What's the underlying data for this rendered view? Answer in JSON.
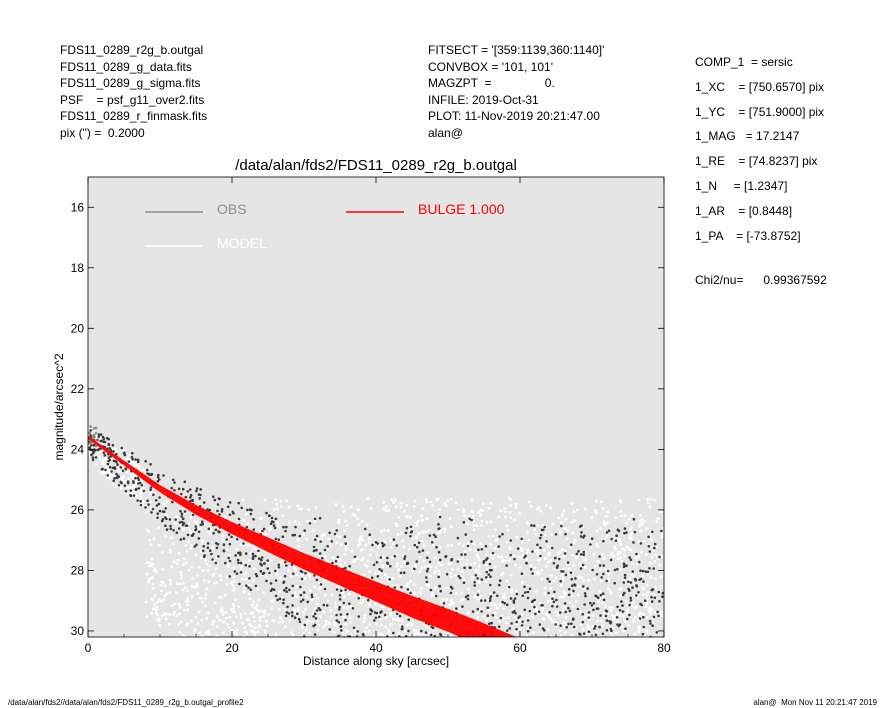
{
  "header_left": [
    "FDS11_0289_r2g_b.outgal",
    "FDS11_0289_g_data.fits",
    "FDS11_0289_g_sigma.fits",
    "PSF    = psf_g11_over2.fits",
    "FDS11_0289_r_finmask.fits",
    "pix (\") =  0.2000"
  ],
  "header_middle": [
    "FITSECT = '[359:1139,360:1140]'",
    "CONVBOX = '101, 101'",
    "MAGZPT  =                0.",
    "INFILE: 2019-Oct-31",
    "PLOT: 11-Nov-2019 20:21:47.00",
    "alan@"
  ],
  "header_right": [
    "COMP_1  = sersic",
    "1_XC    = [750.6570] pix",
    "1_YC    = [751.9000] pix",
    "1_MAG   = 17.2147",
    "1_RE    = [74.8237] pix",
    "1_N     = [1.2347]",
    "1_AR    = [0.8448]",
    "1_PA    = [-73.8752]"
  ],
  "chi2_text": "Chi2/nu=      0.99367592",
  "footer_left": "/data/alan/fds2//data/alan/fds2/FDS11_0289_r2g_b.outgal_profile2",
  "footer_right": "alan@  Mon Nov 11 20:21:47 2019",
  "colors": {
    "plot_background": "#e5e5e5",
    "obs": "#8c8c8c",
    "model": "#ffffff",
    "bulge": "#ff0000",
    "dark_points": "#3a3a3a"
  },
  "chart_data": {
    "type": "scatter",
    "title": "/data/alan/fds2/FDS11_0289_r2g_b.outgal",
    "xlabel": "Distance along sky [arcsec]",
    "ylabel": "magnitude/arcsec^2",
    "xlim": [
      0,
      80
    ],
    "ylim": [
      30.2,
      15.0
    ],
    "y_inverted": true,
    "xticks": [
      "0",
      "20",
      "40",
      "60",
      "80"
    ],
    "yticks": [
      "16",
      "18",
      "20",
      "22",
      "24",
      "26",
      "28",
      "30"
    ],
    "legend": [
      {
        "name": "OBS",
        "color": "#8c8c8c"
      },
      {
        "name": "MODEL",
        "color": "#ffffff"
      },
      {
        "name": "BULGE  1.000",
        "color": "#ff0000"
      }
    ],
    "bulge_profile": {
      "x": [
        0,
        5,
        10,
        15,
        20,
        25,
        30,
        35,
        40,
        45,
        50,
        55
      ],
      "y": [
        23.6,
        24.45,
        25.3,
        26.0,
        26.6,
        27.15,
        27.7,
        28.2,
        28.7,
        29.2,
        29.65,
        30.15
      ],
      "band_halfwidth": [
        0.05,
        0.08,
        0.12,
        0.16,
        0.2,
        0.24,
        0.27,
        0.3,
        0.33,
        0.36,
        0.38,
        0.4
      ]
    },
    "obs_scatter": {
      "background_level": 25.6,
      "background_spread": 4.6,
      "x_range": [
        0,
        80
      ]
    },
    "grid": false
  }
}
